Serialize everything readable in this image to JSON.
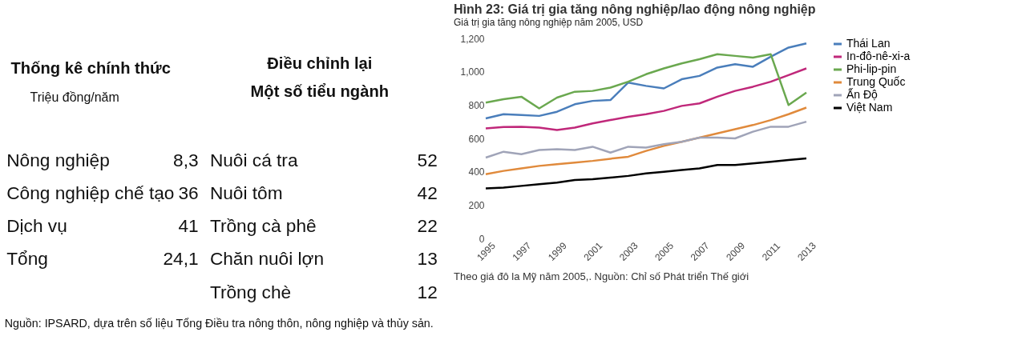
{
  "chart_data": [
    {
      "type": "other",
      "annotations": [
        "Thống kê chính thức",
        "Điều chỉnh lại",
        "Một số tiểu ngành",
        "Triệu đồng/năm",
        "Nông nghiệp",
        "8,3",
        "Nuôi cá tra",
        "52",
        "Công nghiệp chế tạo",
        "36",
        "Nuôi tôm",
        "42",
        "Dịch vụ",
        "41",
        "Trồng cà phê",
        "22",
        "Tổng",
        "24,1",
        "Chăn nuôi lợn",
        "13",
        "Trồng chè",
        "12",
        "Nguồn: IPSARD, dựa trên số liệu Tổng Điều tra nông thôn, nông nghiệp và thủy sản."
      ]
    },
    {
      "type": "line",
      "title": "Hình 23: Giá trị gia tăng nông nghiệp/lao động nông nghiệp",
      "subtitle": "Giá trị gia tăng nông nghiệp năm 2005, USD",
      "annotations": [
        "Theo giá đô la Mỹ năm 2005,. Nguồn: Chỉ số Phát triển Thế giới"
      ],
      "x": [
        1995,
        1996,
        1997,
        1998,
        1999,
        2000,
        2001,
        2002,
        2003,
        2004,
        2005,
        2006,
        2007,
        2008,
        2009,
        2010,
        2011,
        2012,
        2013
      ],
      "xlim": [
        1995,
        2013
      ],
      "xticks": [
        1995,
        1997,
        1999,
        2001,
        2003,
        2005,
        2007,
        2009,
        2011,
        2013
      ],
      "ylim": [
        0,
        1200
      ],
      "yticks": [
        0,
        {
          "value": 200,
          "label": "200"
        },
        {
          "value": 400,
          "label": "400"
        },
        {
          "value": 600,
          "label": "600"
        },
        {
          "value": 800,
          "label": "800"
        },
        {
          "value": 1000,
          "label": "1,000"
        },
        {
          "value": 1200,
          "label": "1,200"
        }
      ],
      "grid": false,
      "legend": "right",
      "line_style": "solid",
      "marker": "none",
      "series": [
        {
          "name": "Thái Lan",
          "color": "#4a7ebb",
          "values": [
            720,
            745,
            740,
            735,
            760,
            805,
            825,
            830,
            935,
            915,
            900,
            955,
            975,
            1025,
            1045,
            1030,
            1090,
            1145,
            1170
          ]
        },
        {
          "name": "In-đô-nê-xi-a",
          "color": "#c0287a",
          "values": [
            660,
            668,
            670,
            665,
            650,
            665,
            690,
            710,
            730,
            745,
            765,
            795,
            810,
            850,
            885,
            910,
            940,
            980,
            1020
          ]
        },
        {
          "name": "Phi-lip-pin",
          "color": "#6aa84f",
          "values": [
            815,
            835,
            850,
            780,
            845,
            880,
            885,
            905,
            940,
            985,
            1020,
            1050,
            1075,
            1105,
            1095,
            1085,
            1105,
            800,
            875
          ]
        },
        {
          "name": "Trung Quốc",
          "color": "#e08a3c",
          "values": [
            385,
            405,
            420,
            435,
            445,
            455,
            465,
            478,
            490,
            525,
            555,
            580,
            605,
            630,
            655,
            680,
            710,
            745,
            785
          ]
        },
        {
          "name": "Ấn Độ",
          "color": "#a0a4b8",
          "values": [
            485,
            520,
            505,
            530,
            535,
            530,
            550,
            515,
            550,
            545,
            565,
            580,
            605,
            605,
            600,
            640,
            670,
            670,
            700
          ]
        },
        {
          "name": "Việt Nam",
          "color": "#000000",
          "values": [
            300,
            305,
            315,
            325,
            335,
            350,
            355,
            365,
            375,
            390,
            400,
            410,
            420,
            440,
            440,
            450,
            460,
            470,
            480
          ]
        }
      ]
    }
  ]
}
